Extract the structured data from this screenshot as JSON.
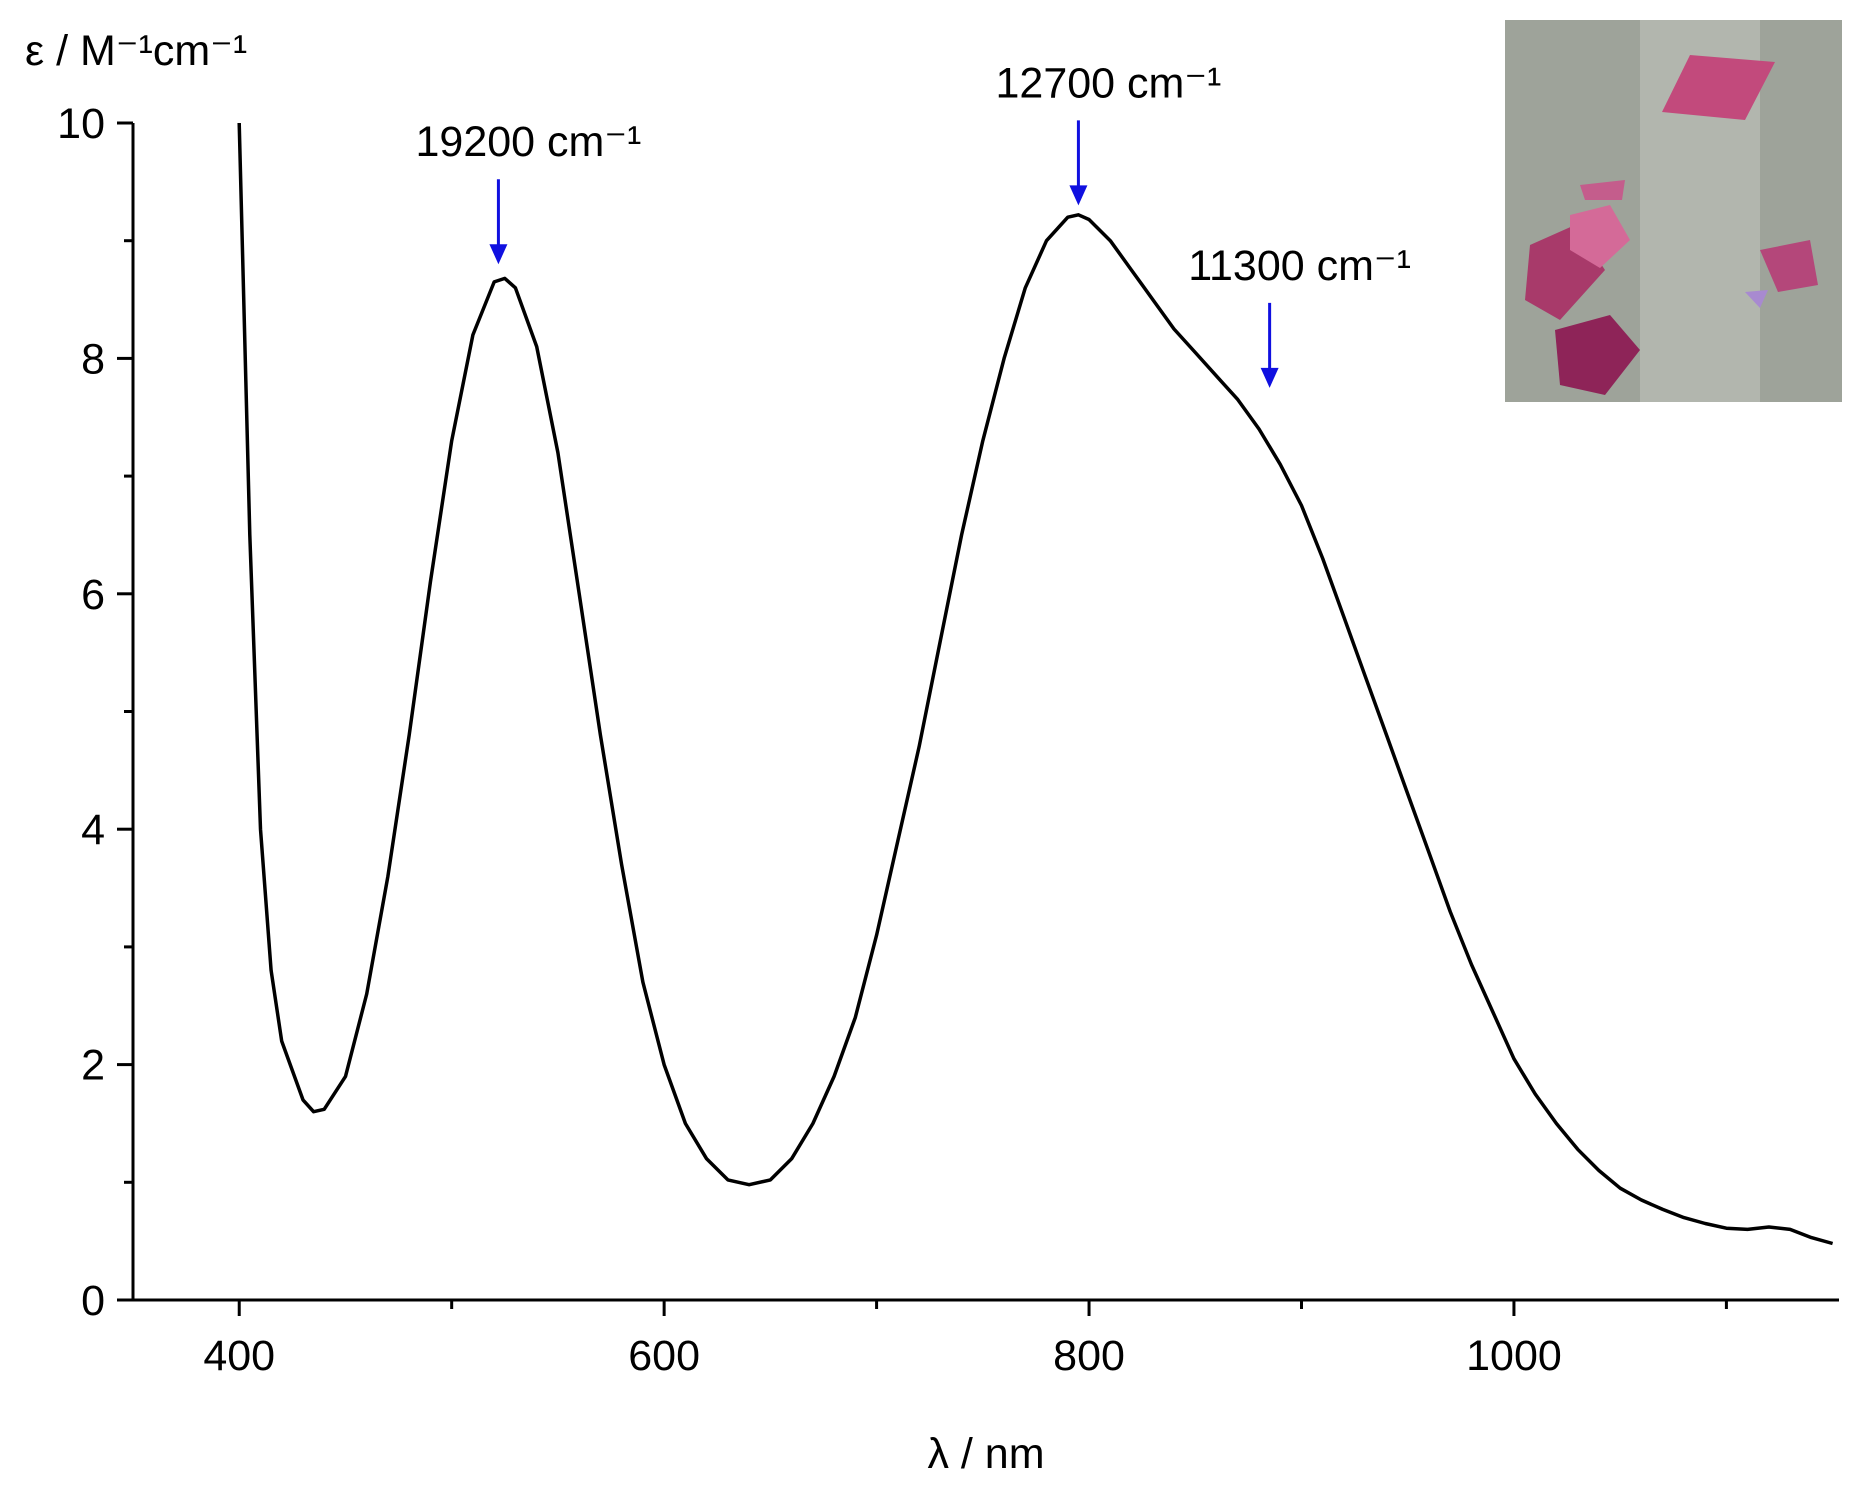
{
  "chart_data": {
    "type": "line",
    "x_label": "λ / nm",
    "y_label": "ε / M⁻¹cm⁻¹",
    "xlim": [
      350,
      1153
    ],
    "ylim": [
      0,
      10
    ],
    "xticks": [
      400,
      600,
      800,
      1000
    ],
    "xminorticks": [
      500,
      700,
      900,
      1100
    ],
    "yticks": [
      0,
      2,
      4,
      6,
      8,
      10
    ],
    "yminorticks": [
      1,
      3,
      5,
      7,
      9
    ],
    "annotation_color": "#1010e0",
    "annotations": [
      {
        "text": "19200 cm⁻¹",
        "x": 522,
        "y": 8.8
      },
      {
        "text": "12700 cm⁻¹",
        "x": 795,
        "y": 9.3
      },
      {
        "text": "11300 cm⁻¹",
        "x": 885,
        "y": 7.75
      }
    ],
    "series": [
      {
        "name": null,
        "color": "#000000",
        "x": [
          400,
          405,
          410,
          415,
          420,
          430,
          435,
          440,
          450,
          460,
          470,
          480,
          490,
          500,
          510,
          520,
          525,
          530,
          540,
          550,
          560,
          570,
          580,
          590,
          600,
          610,
          620,
          630,
          640,
          650,
          660,
          670,
          680,
          690,
          700,
          710,
          720,
          730,
          740,
          750,
          760,
          770,
          780,
          790,
          795,
          800,
          810,
          820,
          830,
          840,
          850,
          860,
          870,
          880,
          890,
          900,
          910,
          920,
          930,
          940,
          950,
          960,
          970,
          980,
          990,
          1000,
          1010,
          1020,
          1030,
          1040,
          1050,
          1060,
          1070,
          1080,
          1090,
          1100,
          1110,
          1120,
          1130,
          1140,
          1150
        ],
        "values": [
          10,
          6.5,
          4.0,
          2.8,
          2.2,
          1.7,
          1.6,
          1.62,
          1.9,
          2.6,
          3.6,
          4.8,
          6.1,
          7.3,
          8.2,
          8.65,
          8.68,
          8.6,
          8.1,
          7.2,
          6.0,
          4.8,
          3.7,
          2.7,
          2.0,
          1.5,
          1.2,
          1.02,
          0.98,
          1.02,
          1.2,
          1.5,
          1.9,
          2.4,
          3.1,
          3.9,
          4.7,
          5.6,
          6.5,
          7.3,
          8.0,
          8.6,
          9.0,
          9.2,
          9.22,
          9.18,
          9.0,
          8.75,
          8.5,
          8.25,
          8.05,
          7.85,
          7.65,
          7.4,
          7.1,
          6.75,
          6.3,
          5.8,
          5.3,
          4.8,
          4.3,
          3.8,
          3.3,
          2.85,
          2.45,
          2.05,
          1.75,
          1.5,
          1.28,
          1.1,
          0.95,
          0.85,
          0.77,
          0.7,
          0.65,
          0.61,
          0.6,
          0.62,
          0.6,
          0.53,
          0.48
        ]
      }
    ]
  }
}
